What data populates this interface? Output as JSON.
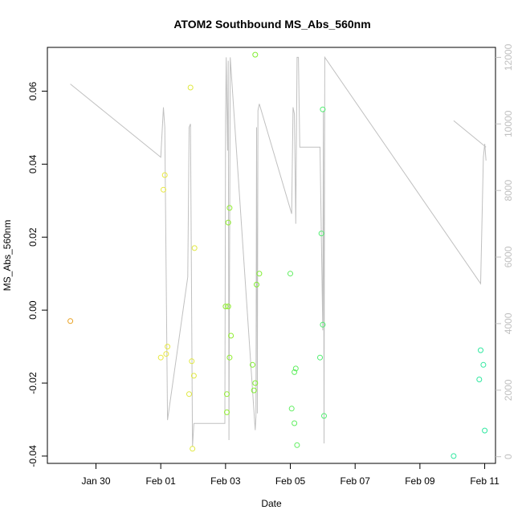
{
  "chart_data": {
    "type": "scatter",
    "title": "ATOM2 Southbound MS_Abs_560nm",
    "xlabel": "Date",
    "ylabel": "MS_Abs_560nm",
    "xlim": [
      "2025-01-28T12:00",
      "2025-02-11T08:00"
    ],
    "ylim": [
      -0.042,
      0.072
    ],
    "y2lim": [
      -200,
      12300
    ],
    "x_ticks": [
      {
        "date": "2025-01-30",
        "label": "Jan 30"
      },
      {
        "date": "2025-02-01",
        "label": "Feb 01"
      },
      {
        "date": "2025-02-03",
        "label": "Feb 03"
      },
      {
        "date": "2025-02-05",
        "label": "Feb 05"
      },
      {
        "date": "2025-02-07",
        "label": "Feb 07"
      },
      {
        "date": "2025-02-09",
        "label": "Feb 09"
      },
      {
        "date": "2025-02-11",
        "label": "Feb 11"
      }
    ],
    "y_ticks": [
      {
        "value": -0.04,
        "label": "-0.04"
      },
      {
        "value": -0.02,
        "label": "-0.02"
      },
      {
        "value": 0.0,
        "label": "0.00"
      },
      {
        "value": 0.02,
        "label": "0.02"
      },
      {
        "value": 0.04,
        "label": "0.04"
      },
      {
        "value": 0.06,
        "label": "0.06"
      }
    ],
    "y2_ticks": [
      {
        "value": 0,
        "label": "0"
      },
      {
        "value": 2000,
        "label": "2000"
      },
      {
        "value": 4000,
        "label": "4000"
      },
      {
        "value": 6000,
        "label": "6000"
      },
      {
        "value": 8000,
        "label": "8000"
      },
      {
        "value": 10000,
        "label": "10000"
      },
      {
        "value": 12000,
        "label": "12000"
      }
    ],
    "grid": false,
    "colors": {
      "line": "#c0c0c0",
      "frame": "#000000",
      "right_axis": "#c0c0c0"
    },
    "points": [
      {
        "x": "2025-01-29T05:00",
        "y": -0.003,
        "color": "#e8a020"
      },
      {
        "x": "2025-02-01T00:00",
        "y": -0.013,
        "color": "#e8e840"
      },
      {
        "x": "2025-02-01T02:00",
        "y": 0.033,
        "color": "#e8e840"
      },
      {
        "x": "2025-02-01T03:00",
        "y": 0.037,
        "color": "#e8e840"
      },
      {
        "x": "2025-02-01T04:00",
        "y": -0.012,
        "color": "#e8e840"
      },
      {
        "x": "2025-02-01T05:00",
        "y": -0.01,
        "color": "#e8e840"
      },
      {
        "x": "2025-02-01T21:00",
        "y": -0.023,
        "color": "#e0e840"
      },
      {
        "x": "2025-02-01T22:00",
        "y": 0.061,
        "color": "#e0e840"
      },
      {
        "x": "2025-02-01T23:00",
        "y": -0.014,
        "color": "#e0e840"
      },
      {
        "x": "2025-02-01T23:30",
        "y": -0.038,
        "color": "#e0e840"
      },
      {
        "x": "2025-02-02T00:30",
        "y": -0.018,
        "color": "#e0e840"
      },
      {
        "x": "2025-02-02T01:00",
        "y": 0.017,
        "color": "#e0e840"
      },
      {
        "x": "2025-02-03T00:00",
        "y": 0.001,
        "color": "#90ee30"
      },
      {
        "x": "2025-02-03T01:00",
        "y": -0.023,
        "color": "#90ee30"
      },
      {
        "x": "2025-02-03T01:00",
        "y": -0.028,
        "color": "#90ee30"
      },
      {
        "x": "2025-02-03T02:00",
        "y": 0.024,
        "color": "#90ee30"
      },
      {
        "x": "2025-02-03T02:00",
        "y": 0.001,
        "color": "#90ee30"
      },
      {
        "x": "2025-02-03T03:00",
        "y": 0.028,
        "color": "#90ee30"
      },
      {
        "x": "2025-02-03T03:00",
        "y": -0.013,
        "color": "#90ee30"
      },
      {
        "x": "2025-02-03T04:00",
        "y": -0.007,
        "color": "#90ee30"
      },
      {
        "x": "2025-02-03T20:00",
        "y": -0.015,
        "color": "#80ee30"
      },
      {
        "x": "2025-02-03T21:00",
        "y": -0.022,
        "color": "#80ee30"
      },
      {
        "x": "2025-02-03T22:00",
        "y": 0.07,
        "color": "#80ee30"
      },
      {
        "x": "2025-02-03T22:00",
        "y": -0.02,
        "color": "#80ee30"
      },
      {
        "x": "2025-02-03T23:00",
        "y": 0.007,
        "color": "#80ee30"
      },
      {
        "x": "2025-02-04T01:00",
        "y": 0.01,
        "color": "#80ee30"
      },
      {
        "x": "2025-02-05T00:00",
        "y": 0.01,
        "color": "#60ee60"
      },
      {
        "x": "2025-02-05T01:00",
        "y": -0.027,
        "color": "#60ee60"
      },
      {
        "x": "2025-02-05T03:00",
        "y": -0.017,
        "color": "#60ee60"
      },
      {
        "x": "2025-02-05T03:00",
        "y": -0.031,
        "color": "#60ee60"
      },
      {
        "x": "2025-02-05T04:00",
        "y": -0.016,
        "color": "#60ee60"
      },
      {
        "x": "2025-02-05T05:00",
        "y": -0.037,
        "color": "#60ee60"
      },
      {
        "x": "2025-02-05T22:00",
        "y": -0.013,
        "color": "#50ee70"
      },
      {
        "x": "2025-02-05T23:00",
        "y": 0.021,
        "color": "#50ee70"
      },
      {
        "x": "2025-02-06T00:00",
        "y": 0.055,
        "color": "#50ee70"
      },
      {
        "x": "2025-02-06T00:00",
        "y": -0.004,
        "color": "#50ee70"
      },
      {
        "x": "2025-02-06T01:00",
        "y": -0.029,
        "color": "#50ee70"
      },
      {
        "x": "2025-02-10T01:00",
        "y": -0.04,
        "color": "#30e8a0"
      },
      {
        "x": "2025-02-10T20:00",
        "y": -0.019,
        "color": "#30e8a0"
      },
      {
        "x": "2025-02-10T21:00",
        "y": -0.011,
        "color": "#30e8a0"
      },
      {
        "x": "2025-02-10T23:00",
        "y": -0.015,
        "color": "#30e8a0"
      },
      {
        "x": "2025-02-11T00:00",
        "y": -0.033,
        "color": "#30e8a0"
      }
    ],
    "line_series": {
      "axis": "right",
      "segments": [
        [
          [
            "2025-01-29T05:00",
            11200
          ],
          [
            "2025-02-01T00:00",
            9000
          ],
          [
            "2025-02-01T02:00",
            10500
          ],
          [
            "2025-02-01T03:00",
            9900
          ],
          [
            "2025-02-01T05:00",
            1100
          ],
          [
            "2025-02-01T20:00",
            5400
          ],
          [
            "2025-02-01T21:00",
            9900
          ],
          [
            "2025-02-01T22:00",
            10000
          ],
          [
            "2025-02-01T23:30",
            300
          ],
          [
            "2025-02-02T00:30",
            1000
          ],
          [
            "2025-02-02T23:30",
            1000
          ],
          [
            "2025-02-03T00:00",
            10200
          ],
          [
            "2025-02-03T00:30",
            12000
          ],
          [
            "2025-02-03T01:30",
            9200
          ],
          [
            "2025-02-03T02:00",
            11900
          ],
          [
            "2025-02-03T02:30",
            500
          ],
          [
            "2025-02-03T03:30",
            12000
          ],
          [
            "2025-02-03T22:00",
            800
          ],
          [
            "2025-02-03T22:30",
            1200
          ],
          [
            "2025-02-03T23:00",
            9900
          ],
          [
            "2025-02-03T23:30",
            1300
          ],
          [
            "2025-02-04T00:00",
            10400
          ],
          [
            "2025-02-04T01:00",
            10600
          ],
          [
            "2025-02-05T01:00",
            7300
          ],
          [
            "2025-02-05T02:00",
            10500
          ],
          [
            "2025-02-05T03:00",
            10300
          ],
          [
            "2025-02-05T04:00",
            7000
          ],
          [
            "2025-02-05T05:00",
            12000
          ],
          [
            "2025-02-05T06:00",
            12000
          ],
          [
            "2025-02-05T07:00",
            9300
          ],
          [
            "2025-02-05T22:00",
            9300
          ],
          [
            "2025-02-06T00:00",
            3800
          ],
          [
            "2025-02-06T00:30",
            10400
          ],
          [
            "2025-02-06T01:00",
            400
          ],
          [
            "2025-02-06T01:30",
            12000
          ],
          [
            "2025-02-10T21:00",
            5200
          ],
          [
            "2025-02-10T23:00",
            9000
          ],
          [
            "2025-02-11T00:00",
            9400
          ],
          [
            "2025-02-11T01:00",
            8900
          ]
        ],
        [
          [
            "2025-02-10T01:00",
            10100
          ],
          [
            "2025-02-11T01:00",
            9300
          ]
        ]
      ]
    }
  }
}
